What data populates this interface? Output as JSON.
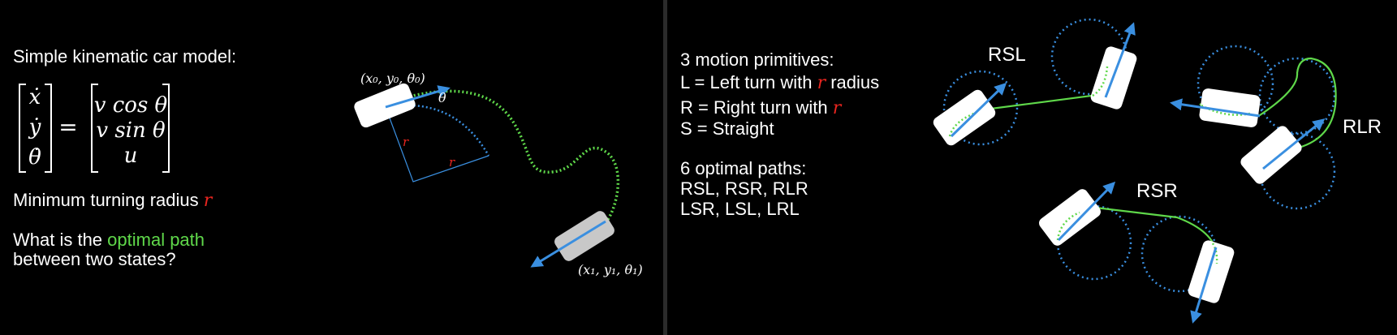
{
  "left": {
    "model_title": "Simple kinematic car model:",
    "state_vector": [
      "ẋ",
      "ẏ",
      "θ̇"
    ],
    "equals": "=",
    "dynamics_vector": [
      "v cos θ",
      "v sin θ",
      "u"
    ],
    "radius_prefix": "Minimum turning radius ",
    "radius_symbol": "r",
    "question_prefix": "What is the ",
    "question_highlight": "optimal path",
    "question_suffix": "between two states?",
    "start_state": "(x₀, y₀, θ₀)",
    "end_state": "(x₁, y₁, θ₁)",
    "theta_symbol": "θ",
    "radius_label": "r"
  },
  "right": {
    "primitives_title": "3 motion primitives:",
    "primitive_left_prefix": "L = Left turn with ",
    "primitive_left_symbol": "r",
    "primitive_left_suffix": " radius",
    "primitive_right_prefix": "R = Right turn with ",
    "primitive_right_symbol": "r",
    "primitive_straight": "S = Straight",
    "paths_title": "6 optimal paths:",
    "paths_line1": "RSL, RSR, RLR",
    "paths_line2": "LSR, LSL, LRL",
    "example_labels": [
      "RSL",
      "RLR",
      "RSR"
    ]
  },
  "colors": {
    "background": "#000000",
    "highlight_green": "#5fd84a",
    "radius_red": "#e8251f",
    "heading_blue": "#3a8fe0",
    "circle_blue": "#3a8fe0",
    "car_white": "#ffffff",
    "car_goal_gray": "#c8c8c8"
  }
}
